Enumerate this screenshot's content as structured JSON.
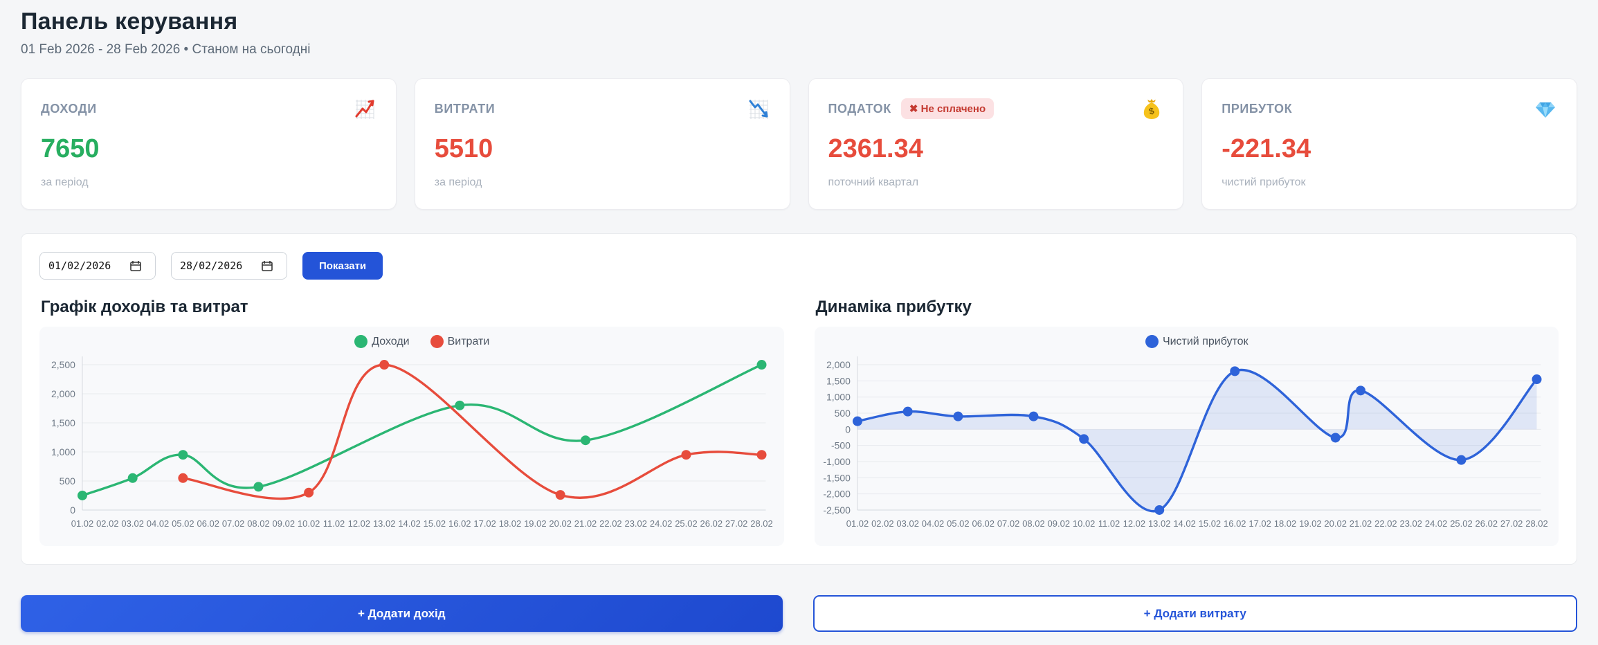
{
  "header": {
    "title": "Панель керування",
    "subtitle": "01 Feb 2026 - 28 Feb 2026 • Станом на сьогодні"
  },
  "colors": {
    "accent_blue": "#2454d8",
    "green": "#2bb673",
    "red": "#e74c3c",
    "profit_line_blue": "#2e63d9",
    "badge_bg": "#fce1e3",
    "badge_text": "#c43a31",
    "panel_bg": "#f8f9fb"
  },
  "stat_cards": [
    {
      "label": "ДОХОДИ",
      "icon": "chart-increasing-icon",
      "value": "7650",
      "value_color": "#27ae60",
      "caption": "за період"
    },
    {
      "label": "ВИТРАТИ",
      "icon": "chart-decreasing-icon",
      "value": "5510",
      "value_color": "#e74c3c",
      "caption": "за період"
    },
    {
      "label": "ПОДАТОК",
      "icon": "money-bag-icon",
      "badge": "✖ Не сплачено",
      "value": "2361.34",
      "value_color": "#e74c3c",
      "caption": "поточний квартал"
    },
    {
      "label": "ПРИБУТОК",
      "icon": "gem-icon",
      "value": "-221.34",
      "value_color": "#e74c3c",
      "caption": "чистий прибуток"
    }
  ],
  "filters": {
    "date_from": "01/02/2026",
    "date_to": "28/02/2026",
    "show_button": "Показати"
  },
  "buttons": {
    "add_income": "+ Додати дохід",
    "add_expense": "+ Додати витрату"
  },
  "chart_data": [
    {
      "type": "line",
      "title": "Графік доходів та витрат",
      "categories": [
        "01.02",
        "02.02",
        "03.02",
        "04.02",
        "05.02",
        "06.02",
        "07.02",
        "08.02",
        "09.02",
        "10.02",
        "11.02",
        "12.02",
        "13.02",
        "14.02",
        "15.02",
        "16.02",
        "17.02",
        "18.02",
        "19.02",
        "20.02",
        "21.02",
        "22.02",
        "23.02",
        "24.02",
        "25.02",
        "26.02",
        "27.02",
        "28.02"
      ],
      "yticks": [
        0,
        500,
        1000,
        1500,
        2000,
        2500
      ],
      "ylim": [
        0,
        2500
      ],
      "grid": true,
      "legend_position": "top-center",
      "series": [
        {
          "name": "Доходи",
          "color": "#2bb673",
          "points": [
            {
              "x": "01.02",
              "y": 250
            },
            {
              "x": "03.02",
              "y": 550
            },
            {
              "x": "05.02",
              "y": 950
            },
            {
              "x": "08.02",
              "y": 400
            },
            {
              "x": "16.02",
              "y": 1800
            },
            {
              "x": "21.02",
              "y": 1200
            },
            {
              "x": "28.02",
              "y": 2500
            }
          ]
        },
        {
          "name": "Витрати",
          "color": "#e74c3c",
          "points": [
            {
              "x": "05.02",
              "y": 550
            },
            {
              "x": "10.02",
              "y": 300
            },
            {
              "x": "13.02",
              "y": 2500
            },
            {
              "x": "20.02",
              "y": 260
            },
            {
              "x": "25.02",
              "y": 950
            },
            {
              "x": "28.02",
              "y": 950
            }
          ]
        }
      ]
    },
    {
      "type": "area",
      "title": "Динаміка прибутку",
      "categories": [
        "01.02",
        "02.02",
        "03.02",
        "04.02",
        "05.02",
        "06.02",
        "07.02",
        "08.02",
        "09.02",
        "10.02",
        "11.02",
        "12.02",
        "13.02",
        "14.02",
        "15.02",
        "16.02",
        "17.02",
        "18.02",
        "19.02",
        "20.02",
        "21.02",
        "22.02",
        "23.02",
        "24.02",
        "25.02",
        "26.02",
        "27.02",
        "28.02"
      ],
      "yticks": [
        -2500,
        -2000,
        -1500,
        -1000,
        -500,
        0,
        500,
        1000,
        1500,
        2000
      ],
      "ylim": [
        -2500,
        2000
      ],
      "grid": true,
      "legend_position": "top-center",
      "series": [
        {
          "name": "Чистий прибуток",
          "color": "#2e63d9",
          "fill": "rgba(46,99,217,0.12)",
          "baseline": 0,
          "points": [
            {
              "x": "01.02",
              "y": 250
            },
            {
              "x": "03.02",
              "y": 550
            },
            {
              "x": "05.02",
              "y": 400
            },
            {
              "x": "08.02",
              "y": 400
            },
            {
              "x": "10.02",
              "y": -300
            },
            {
              "x": "13.02",
              "y": -2500
            },
            {
              "x": "16.02",
              "y": 1800
            },
            {
              "x": "20.02",
              "y": -260
            },
            {
              "x": "21.02",
              "y": 1200
            },
            {
              "x": "25.02",
              "y": -950
            },
            {
              "x": "28.02",
              "y": 1550
            }
          ]
        }
      ]
    }
  ]
}
